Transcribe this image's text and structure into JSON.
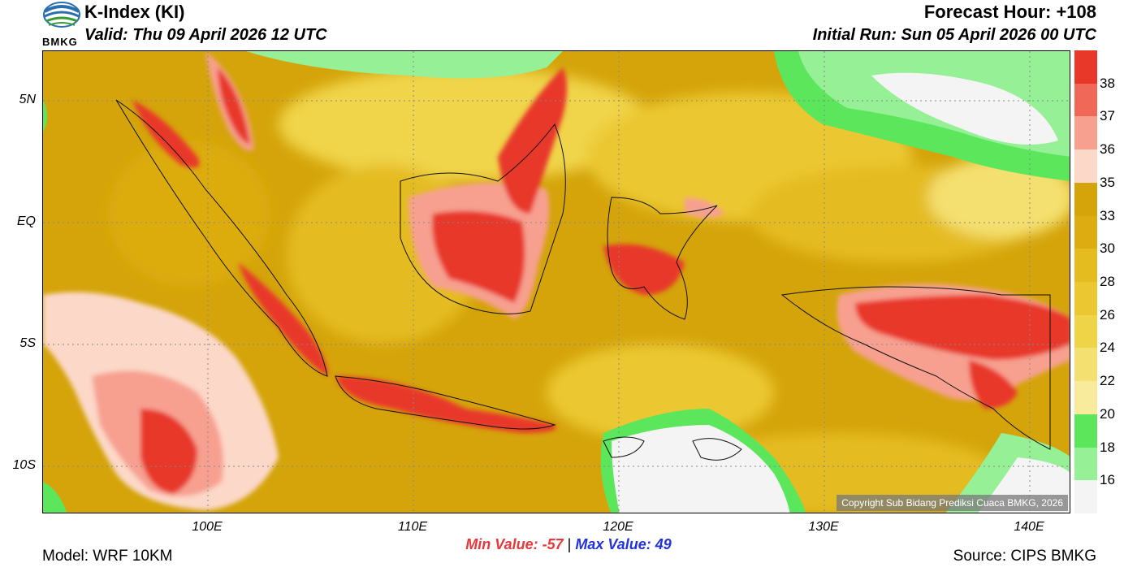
{
  "header": {
    "title": "K-Index (KI)",
    "valid": "Valid: Thu 09 April 2026 12 UTC",
    "forecast_hour": "Forecast Hour: +108",
    "initial_run": "Initial Run: Sun 05 April 2026 00 UTC",
    "logo_text": "BMKG"
  },
  "map": {
    "lat_labels": [
      "5N",
      "EQ",
      "5S",
      "10S"
    ],
    "lon_labels": [
      "100E",
      "110E",
      "120E",
      "130E",
      "140E"
    ],
    "copyright": "Copyright Sub Bidang Prediksi Cuaca BMKG, 2026"
  },
  "colorbar": {
    "labels": [
      "38",
      "37",
      "36",
      "35",
      "33",
      "30",
      "28",
      "26",
      "24",
      "22",
      "20",
      "18",
      "16"
    ],
    "colors": [
      "#e8382a",
      "#f06858",
      "#f7a090",
      "#fcd8c8",
      "#d4a40a",
      "#dcac10",
      "#e4bc20",
      "#ebc832",
      "#f0d448",
      "#f4e070",
      "#f8ec9c",
      "#5ce65c",
      "#96f096",
      "#f4f4f4"
    ]
  },
  "stats": {
    "min_label": "Min Value: -57",
    "separator": "|",
    "max_label": "Max Value:  49",
    "min_color": "#e8383a",
    "max_color": "#2233dd"
  },
  "footer": {
    "model": "Model: WRF 10KM",
    "source": "Source: CIPS BMKG"
  }
}
